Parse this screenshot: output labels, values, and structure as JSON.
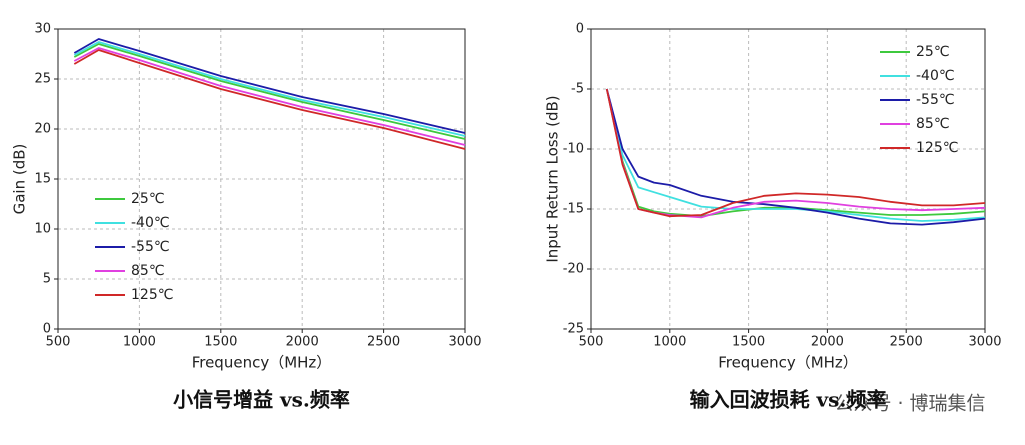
{
  "chart_data": [
    {
      "type": "line",
      "title": "小信号增益 vs.频率",
      "x_label": "Frequency（MHz）",
      "y_label": "Gain (dB)",
      "x": [
        600,
        750,
        1000,
        1500,
        2000,
        2500,
        3000
      ],
      "xlim": [
        500,
        3000
      ],
      "xticks": [
        500,
        1000,
        1500,
        2000,
        2500,
        3000
      ],
      "ylim": [
        0,
        30
      ],
      "yticks": [
        0,
        5,
        10,
        15,
        20,
        25,
        30
      ],
      "grid": true,
      "legend_position": "lower left",
      "series": [
        {
          "name": "25℃",
          "color": "#3ec93e",
          "values": [
            27.2,
            28.5,
            27.3,
            24.8,
            22.7,
            20.9,
            19.0
          ]
        },
        {
          "name": "-40℃",
          "color": "#40e0e0",
          "values": [
            27.4,
            28.7,
            27.5,
            25.0,
            22.9,
            21.2,
            19.3
          ]
        },
        {
          "name": "-55℃",
          "color": "#1c1ca8",
          "values": [
            27.6,
            29.0,
            27.8,
            25.3,
            23.2,
            21.5,
            19.6
          ]
        },
        {
          "name": "85℃",
          "color": "#e040e0",
          "values": [
            26.8,
            28.1,
            26.9,
            24.3,
            22.2,
            20.4,
            18.4
          ]
        },
        {
          "name": "125℃",
          "color": "#d02828",
          "values": [
            26.5,
            27.9,
            26.6,
            24.0,
            21.9,
            20.1,
            18.0
          ]
        }
      ]
    },
    {
      "type": "line",
      "title": "输入回波损耗 vs.频率",
      "x_label": "Frequency（MHz）",
      "y_label": "Input Return Loss (dB)",
      "x": [
        600,
        700,
        800,
        900,
        1000,
        1200,
        1400,
        1600,
        1800,
        2000,
        2200,
        2400,
        2600,
        2800,
        3000
      ],
      "xlim": [
        500,
        3000
      ],
      "xticks": [
        500,
        1000,
        1500,
        2000,
        2500,
        3000
      ],
      "ylim": [
        -25,
        0
      ],
      "yticks": [
        -25,
        -20,
        -15,
        -10,
        -5,
        0
      ],
      "grid": true,
      "legend_position": "upper right",
      "series": [
        {
          "name": "25℃",
          "color": "#3ec93e",
          "values": [
            -5,
            -11,
            -14.8,
            -15.2,
            -15.4,
            -15.6,
            -15.2,
            -14.9,
            -14.9,
            -15.1,
            -15.3,
            -15.5,
            -15.5,
            -15.4,
            -15.2
          ]
        },
        {
          "name": "-40℃",
          "color": "#40e0e0",
          "values": [
            -5,
            -10.5,
            -13.2,
            -13.6,
            -14.0,
            -14.8,
            -15.0,
            -15.0,
            -15.0,
            -15.2,
            -15.5,
            -15.8,
            -16.0,
            -15.9,
            -15.7
          ]
        },
        {
          "name": "-55℃",
          "color": "#1c1ca8",
          "values": [
            -5,
            -10,
            -12.3,
            -12.8,
            -13.0,
            -13.9,
            -14.4,
            -14.6,
            -14.9,
            -15.3,
            -15.8,
            -16.2,
            -16.3,
            -16.1,
            -15.8
          ]
        },
        {
          "name": "85℃",
          "color": "#e040e0",
          "values": [
            -5,
            -11.2,
            -15,
            -15.3,
            -15.5,
            -15.7,
            -14.9,
            -14.4,
            -14.3,
            -14.5,
            -14.8,
            -15.0,
            -15.1,
            -15.0,
            -14.9
          ]
        },
        {
          "name": "125℃",
          "color": "#d02828",
          "values": [
            -5,
            -11.3,
            -15,
            -15.3,
            -15.6,
            -15.5,
            -14.5,
            -13.9,
            -13.7,
            -13.8,
            -14.0,
            -14.4,
            -14.7,
            -14.7,
            -14.5
          ]
        }
      ]
    }
  ],
  "watermark": "公众号 · 博瑞集信"
}
